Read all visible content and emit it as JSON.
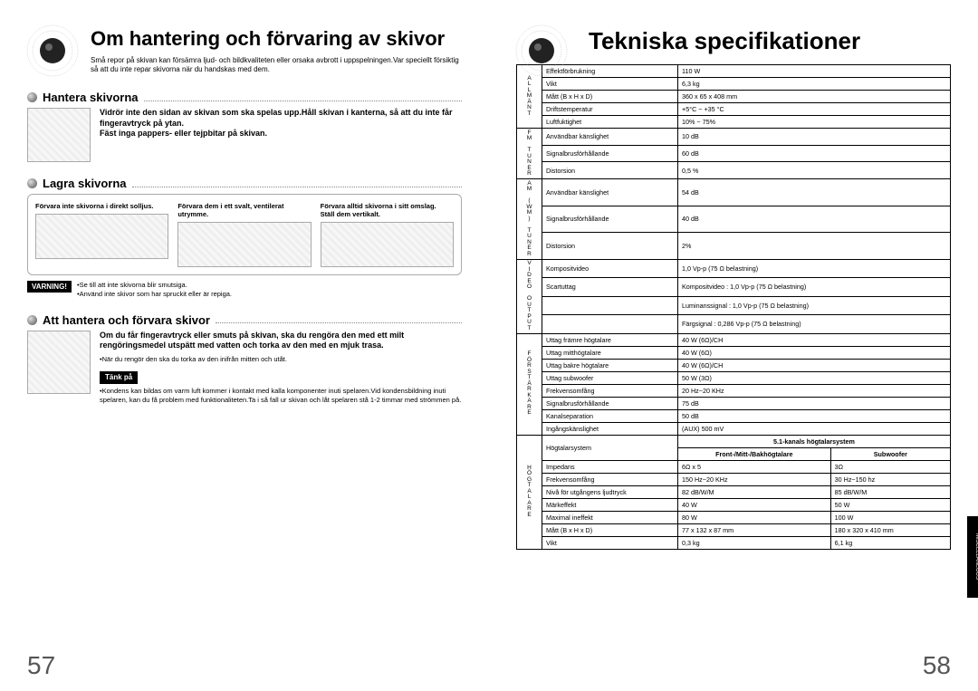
{
  "left": {
    "title": "Om hantering och förvaring av skivor",
    "intro": "Små repor på skivan kan försämra ljud- och bildkvaliteten eller orsaka avbrott i uppspelningen.Var speciellt försiktig så att du inte repar skivorna när du handskas med dem.",
    "sections": {
      "handle": {
        "title": "Hantera skivorna",
        "text": "Vidrör inte den sidan av skivan som ska spelas upp.Håll skivan i kanterna, så att du inte får fingeravtryck på ytan.\nFäst inga pappers- eller tejpbitar på skivan."
      },
      "store": {
        "title": "Lagra skivorna",
        "cols": [
          "Förvara inte skivorna i direkt solljus.",
          "Förvara dem i ett svalt, ventilerat utrymme.",
          "Förvara alltid skivorna i sitt omslag.\nStäll dem vertikalt."
        ],
        "warning_label": "VARNING!",
        "warning_text": "•Se till att inte skivorna blir smutsiga.\n•Använd inte skivor som har spruckit eller är repiga."
      },
      "care": {
        "title": "Att hantera och förvara skivor",
        "text_bold": "Om du får fingeravtryck eller smuts på skivan, ska du rengöra den med ett milt rengöringsmedel utspätt med vatten och torka av den med en mjuk trasa.",
        "text_small": "•När du rengör den ska du torka av den inifrån mitten och utåt.",
        "think_label": "Tänk på",
        "think_text": "•Kondens kan bildas om varm luft kommer i kontakt med kalla komponenter inuti spelaren.Vid kondensbildning inuti spelaren, kan du få problem med funktionaliteten.Ta i så fall ur skivan och låt spelaren stå 1-2 timmar med strömmen på."
      }
    },
    "page_num": "57"
  },
  "right": {
    "title": "Tekniska specifikationer",
    "groups": [
      {
        "label": "ALLMÄNT",
        "rows": [
          [
            "Effektförbrukning",
            "110 W"
          ],
          [
            "Vikt",
            "6,3 kg"
          ],
          [
            "Mått (B x H x D)",
            "360 x 65 x 408 mm"
          ],
          [
            "Driftstemperatur",
            "+5°C ~ +35 °C"
          ],
          [
            "Luftfuktighet",
            "10% ~ 75%"
          ]
        ]
      },
      {
        "label": "FM TUNER",
        "rows": [
          [
            "Användbar känslighet",
            "10 dB"
          ],
          [
            "Signalbrusförhållande",
            "60 dB"
          ],
          [
            "Distorsion",
            "0,5 %"
          ]
        ]
      },
      {
        "label": "AM (WM) TUNER",
        "rows": [
          [
            "Användbar känslighet",
            "54 dB"
          ],
          [
            "Signalbrusförhållande",
            "40 dB"
          ],
          [
            "Distorsion",
            "2%"
          ]
        ]
      },
      {
        "label": "VIDEO OUTPUT",
        "rows": [
          [
            "Kompositvideo",
            "1,0 Vp-p (75 Ω belastning)"
          ],
          [
            "Scartuttag",
            "Kompositvideo : 1,0 Vp-p (75 Ω belastning)"
          ],
          [
            "",
            "Luminanssignal : 1,0 Vp-p (75 Ω belastning)"
          ],
          [
            "",
            "Färgsignal : 0,286 Vp-p (75 Ω belastning)"
          ]
        ]
      },
      {
        "label": "FÖRSTÄRKARE",
        "rows": [
          [
            "Uttag främre högtalare",
            "40 W (6Ω)/CH"
          ],
          [
            "Uttag mitthögtalare",
            "40 W (6Ω)"
          ],
          [
            "Uttag bakre högtalare",
            "40 W (6Ω)/CH"
          ],
          [
            "Uttag subwoofer",
            "50 W (3Ω)"
          ],
          [
            "Frekvensomfång",
            "20 Hz~20 KHz"
          ],
          [
            "Signalbrusförhållande",
            "75 dB"
          ],
          [
            "Kanalseparation",
            "50 dB"
          ],
          [
            "Ingångskänslighet",
            "(AUX) 500 mV"
          ]
        ]
      }
    ],
    "speaker_group": {
      "label": "HÖGTALARE",
      "super_header": "5.1-kanals högtalarsystem",
      "col_headers": [
        "Front-/Mitt-/Bakhögtalare",
        "Subwoofer"
      ],
      "row_label": "Högtalarsystem",
      "rows": [
        [
          "Impedans",
          "6Ω x 5",
          "3Ω"
        ],
        [
          "Frekvensomfång",
          "150 Hz~20 KHz",
          "30 Hz~150 hz"
        ],
        [
          "Nivå för utgångens ljudtryck",
          "82 dB/W/M",
          "85 dB/W/M"
        ],
        [
          "Märkeffekt",
          "40 W",
          "50 W"
        ],
        [
          "Maximal ineffekt",
          "80 W",
          "100 W"
        ],
        [
          "Mått  (B x H x D)",
          "77 x 132 x 87 mm",
          "180 x 320 x 410 mm"
        ],
        [
          "Vikt",
          "0,3 kg",
          "6,1 kg"
        ]
      ]
    },
    "tab_label": "MISCELLANEOUS",
    "page_num": "58"
  },
  "colors": {
    "text": "#000000",
    "border": "#000000",
    "badge_bg": "#000000",
    "badge_fg": "#ffffff",
    "thumb_bg": "#eeeeee"
  }
}
